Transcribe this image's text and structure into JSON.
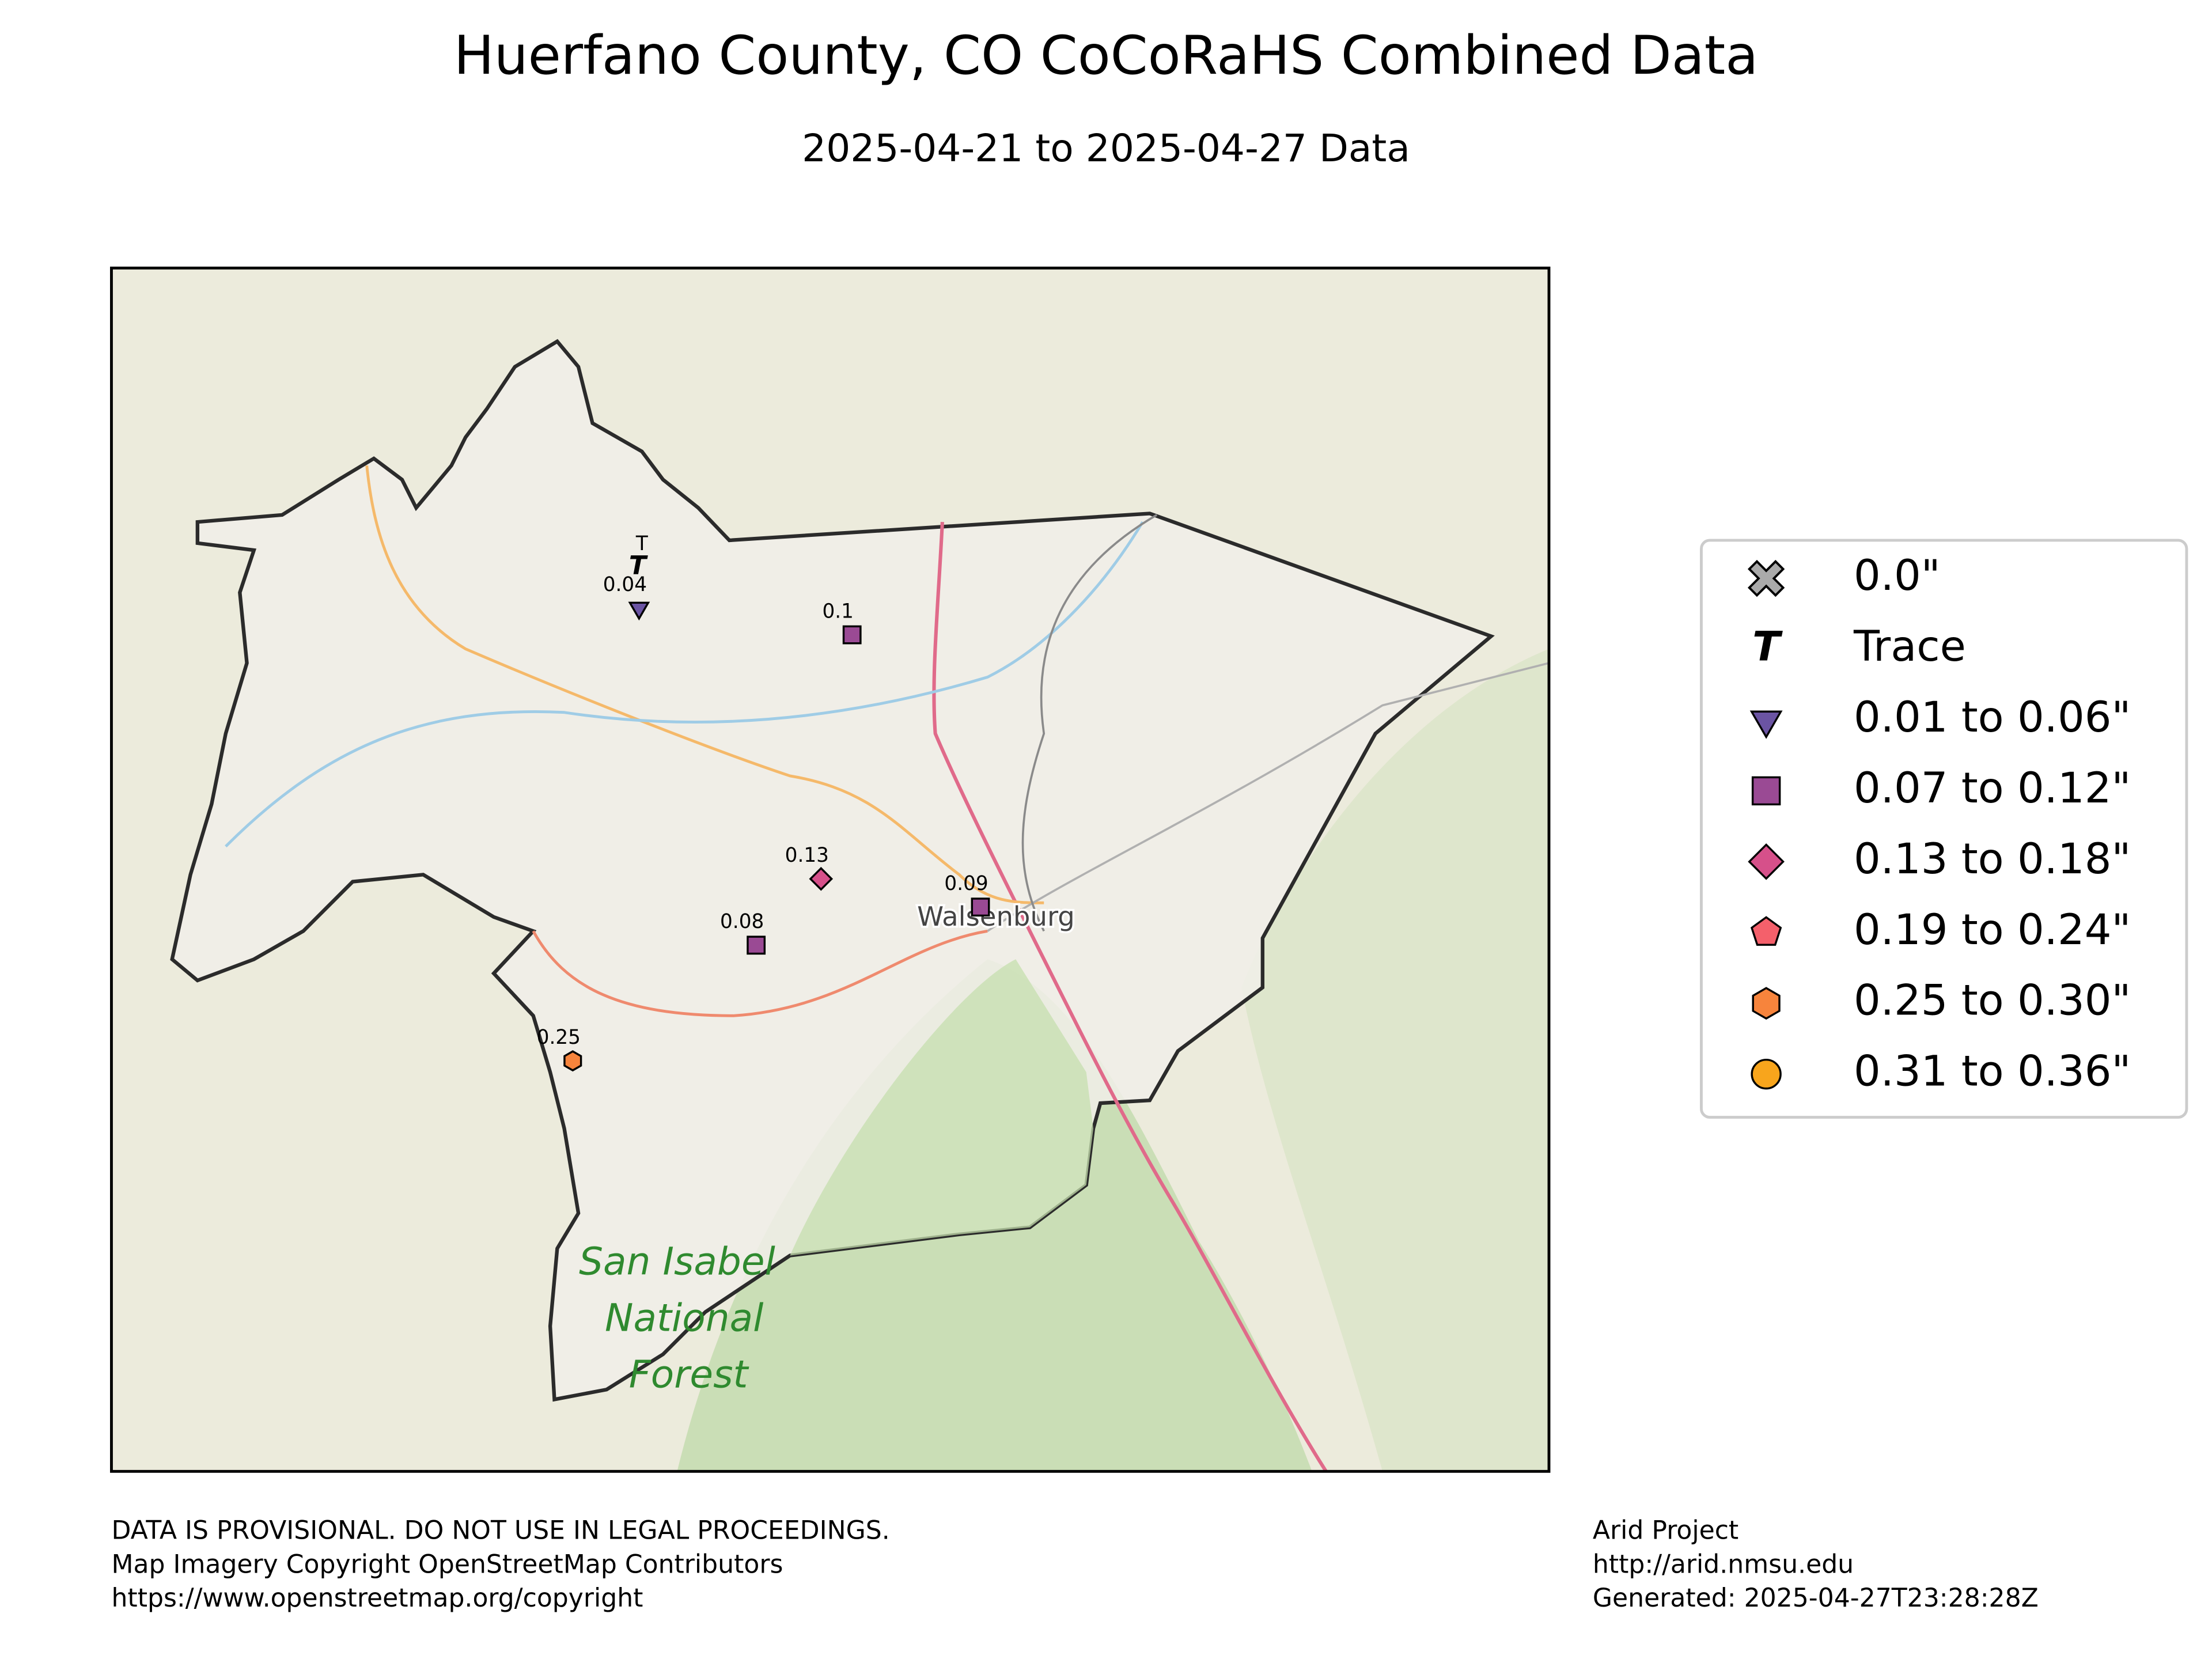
{
  "header": {
    "title": "Huerfano County, CO CoCoRaHS Combined Data",
    "subtitle": "2025-04-21 to 2025-04-27 Data"
  },
  "map": {
    "place_label": "Walsenburg",
    "forest_label": [
      "San Isabel",
      "National",
      "Forest"
    ],
    "background": "#ecebdc",
    "county_fill": "#f1efe9",
    "county_outline": "#2b2b2b"
  },
  "stations": [
    {
      "label": "T"
    },
    {
      "label": "0.04"
    },
    {
      "label": "0.1"
    },
    {
      "label": "0.13"
    },
    {
      "label": "0.09"
    },
    {
      "label": "0.08"
    },
    {
      "label": "0.25"
    }
  ],
  "legend": [
    {
      "label": "0.0\"",
      "marker": "x",
      "color": "#aaaaaa"
    },
    {
      "label": "Trace",
      "marker": "T",
      "color": "#000000"
    },
    {
      "label": "0.01 to 0.06\"",
      "marker": "v",
      "color": "#6b54a3"
    },
    {
      "label": "0.07 to 0.12\"",
      "marker": "s",
      "color": "#9a4a94"
    },
    {
      "label": "0.13 to 0.18\"",
      "marker": "D",
      "color": "#d6508a"
    },
    {
      "label": "0.19 to 0.24\"",
      "marker": "p",
      "color": "#f4606b"
    },
    {
      "label": "0.25 to 0.30\"",
      "marker": "h",
      "color": "#f7843c"
    },
    {
      "label": "0.31 to 0.36\"",
      "marker": "o",
      "color": "#f8a51c"
    }
  ],
  "footer": {
    "left": [
      "DATA IS PROVISIONAL. DO NOT USE IN LEGAL PROCEEDINGS.",
      "Map Imagery Copyright OpenStreetMap Contributors",
      "https://www.openstreetmap.org/copyright"
    ],
    "right": [
      "Arid Project",
      "http://arid.nmsu.edu",
      "Generated: 2025-04-27T23:28:28Z"
    ]
  }
}
